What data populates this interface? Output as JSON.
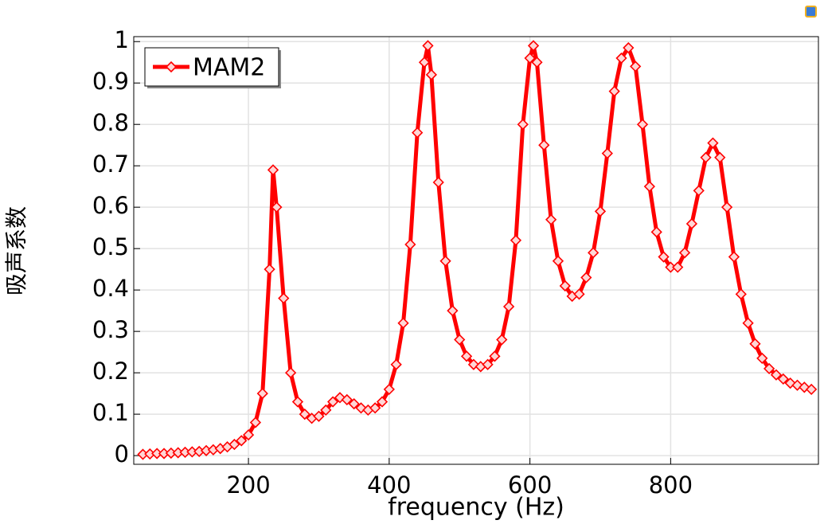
{
  "chart_data": {
    "type": "line",
    "x_label": "frequency (Hz)",
    "y_label": "吸声系数",
    "x": [
      50,
      60,
      70,
      80,
      90,
      100,
      110,
      120,
      130,
      140,
      150,
      160,
      170,
      180,
      190,
      200,
      210,
      220,
      230,
      235,
      240,
      250,
      260,
      270,
      280,
      290,
      300,
      310,
      320,
      330,
      340,
      350,
      360,
      370,
      380,
      390,
      400,
      410,
      420,
      430,
      440,
      450,
      455,
      460,
      470,
      480,
      490,
      500,
      510,
      520,
      530,
      540,
      550,
      560,
      570,
      580,
      590,
      600,
      605,
      610,
      620,
      630,
      640,
      650,
      660,
      670,
      680,
      690,
      700,
      710,
      720,
      730,
      740,
      750,
      760,
      770,
      780,
      790,
      800,
      810,
      820,
      830,
      840,
      850,
      860,
      870,
      880,
      890,
      900,
      910,
      920,
      930,
      940,
      950,
      960,
      970,
      980,
      990,
      1000
    ],
    "series": [
      {
        "name": "MAM2",
        "color": "#ff0000",
        "values": [
          0.003,
          0.004,
          0.005,
          0.005,
          0.006,
          0.007,
          0.008,
          0.009,
          0.01,
          0.012,
          0.014,
          0.017,
          0.021,
          0.027,
          0.036,
          0.05,
          0.08,
          0.15,
          0.45,
          0.69,
          0.6,
          0.38,
          0.2,
          0.13,
          0.1,
          0.09,
          0.095,
          0.11,
          0.13,
          0.14,
          0.135,
          0.125,
          0.115,
          0.11,
          0.115,
          0.13,
          0.16,
          0.22,
          0.32,
          0.51,
          0.78,
          0.95,
          0.99,
          0.92,
          0.66,
          0.47,
          0.35,
          0.28,
          0.24,
          0.22,
          0.215,
          0.22,
          0.24,
          0.28,
          0.36,
          0.52,
          0.8,
          0.96,
          0.99,
          0.95,
          0.75,
          0.57,
          0.47,
          0.41,
          0.385,
          0.39,
          0.43,
          0.49,
          0.59,
          0.73,
          0.88,
          0.96,
          0.985,
          0.94,
          0.8,
          0.65,
          0.54,
          0.48,
          0.455,
          0.455,
          0.49,
          0.56,
          0.64,
          0.72,
          0.755,
          0.72,
          0.6,
          0.48,
          0.39,
          0.32,
          0.27,
          0.235,
          0.21,
          0.195,
          0.185,
          0.175,
          0.17,
          0.165,
          0.16
        ]
      }
    ],
    "xlim": [
      37,
      1010
    ],
    "ylim": [
      -0.021,
      1.012
    ],
    "xticks": [
      200,
      400,
      600,
      800
    ],
    "yticks": [
      0,
      0.1,
      0.2,
      0.3,
      0.4,
      0.5,
      0.6,
      0.7,
      0.8,
      0.9,
      1
    ],
    "grid": true,
    "legend": "upper left"
  }
}
